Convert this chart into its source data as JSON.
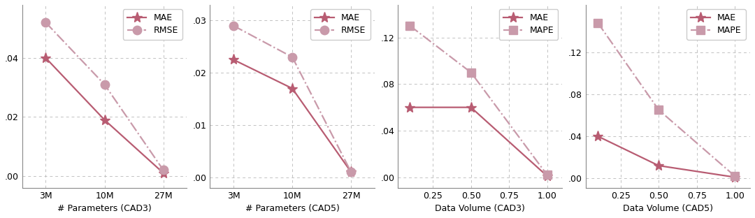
{
  "plots": [
    {
      "xlabel": "# Parameters (CAD3)",
      "xtick_labels": [
        "3M",
        "10M",
        "27M"
      ],
      "xtick_vals": [
        0,
        1,
        2
      ],
      "series": [
        {
          "label": "MAE",
          "y": [
            0.04,
            0.019,
            0.001
          ],
          "linestyle": "-",
          "marker": "*",
          "color": "#b85c72"
        },
        {
          "label": "RMSE",
          "y": [
            0.052,
            0.031,
            0.002
          ],
          "linestyle": "-.",
          "marker": "o",
          "color": "#c99aaa"
        }
      ],
      "yticks": [
        0.0,
        0.02,
        0.04
      ],
      "ylim": [
        -0.004,
        0.058
      ],
      "ytick_labels": [
        ".00",
        ".02",
        ".04"
      ]
    },
    {
      "xlabel": "# Parameters (CAD5)",
      "xtick_labels": [
        "3M",
        "10M",
        "27M"
      ],
      "xtick_vals": [
        0,
        1,
        2
      ],
      "series": [
        {
          "label": "MAE",
          "y": [
            0.0225,
            0.017,
            0.001
          ],
          "linestyle": "-",
          "marker": "*",
          "color": "#b85c72"
        },
        {
          "label": "RMSE",
          "y": [
            0.029,
            0.023,
            0.001
          ],
          "linestyle": "-.",
          "marker": "o",
          "color": "#c99aaa"
        }
      ],
      "yticks": [
        0.0,
        0.01,
        0.02,
        0.03
      ],
      "ylim": [
        -0.002,
        0.033
      ],
      "ytick_labels": [
        ".00",
        ".01",
        ".02",
        ".03"
      ]
    },
    {
      "xlabel": "Data Volume (CAD3)",
      "xtick_labels": [
        "0.25",
        "0.50",
        "0.75",
        "1.00"
      ],
      "series": [
        {
          "label": "MAE",
          "x": [
            0.1,
            0.5,
            1.0
          ],
          "y": [
            0.06,
            0.06,
            0.001
          ],
          "linestyle": "-",
          "marker": "*",
          "color": "#b85c72"
        },
        {
          "label": "MAPE",
          "x": [
            0.1,
            0.5,
            1.0
          ],
          "y": [
            0.13,
            0.09,
            0.002
          ],
          "linestyle": "-.",
          "marker": "s",
          "color": "#c99aaa"
        }
      ],
      "yticks": [
        0.0,
        0.04,
        0.08,
        0.12
      ],
      "ylim": [
        -0.009,
        0.148
      ],
      "ytick_labels": [
        ".00",
        ".04",
        ".08",
        ".12"
      ],
      "xlim": [
        0.02,
        1.1
      ]
    },
    {
      "xlabel": "Data Volume (CAD5)",
      "xtick_labels": [
        "0.25",
        "0.50",
        "0.75",
        "1.00"
      ],
      "series": [
        {
          "label": "MAE",
          "x": [
            0.1,
            0.5,
            1.0
          ],
          "y": [
            0.04,
            0.012,
            0.001
          ],
          "linestyle": "-",
          "marker": "*",
          "color": "#b85c72"
        },
        {
          "label": "MAPE",
          "x": [
            0.1,
            0.5,
            1.0
          ],
          "y": [
            0.148,
            0.065,
            0.002
          ],
          "linestyle": "-.",
          "marker": "s",
          "color": "#c99aaa"
        }
      ],
      "yticks": [
        0.0,
        0.04,
        0.08,
        0.12
      ],
      "ylim": [
        -0.009,
        0.165
      ],
      "ytick_labels": [
        ".00",
        ".04",
        ".08",
        ".12"
      ],
      "xlim": [
        0.02,
        1.1
      ]
    }
  ],
  "bg_color": "#ffffff",
  "grid_color": "#bbbbbb"
}
